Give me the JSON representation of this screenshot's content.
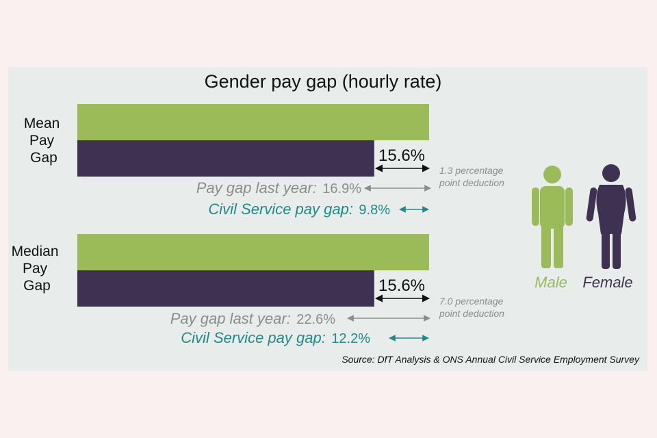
{
  "chart_data": {
    "type": "bar",
    "title": "Gender pay gap (hourly rate)",
    "series": [
      {
        "name": "Male",
        "color": "#9bbb59"
      },
      {
        "name": "Female",
        "color": "#3f3151"
      }
    ],
    "groups": [
      {
        "label": "Mean Pay Gap",
        "label_lines": [
          "Mean",
          "Pay",
          "Gap"
        ],
        "male_value": 100,
        "female_value": 84.4,
        "gap_label": "15.6%",
        "last_year_label": "Pay gap last year:",
        "last_year_value": "16.9%",
        "civil_service_label": "Civil Service pay gap:",
        "civil_service_value": "9.8%",
        "deduction_lines": [
          "1.3 percentage",
          "point deduction"
        ]
      },
      {
        "label": "Median Pay Gap",
        "label_lines": [
          "Median",
          "Pay",
          "Gap"
        ],
        "male_value": 100,
        "female_value": 84.4,
        "gap_label": "15.6%",
        "last_year_label": "Pay gap last year:",
        "last_year_value": "22.6%",
        "civil_service_label": "Civil Service pay gap:",
        "civil_service_value": "12.2%",
        "deduction_lines": [
          "7.0 percentage",
          "point deduction"
        ]
      }
    ],
    "legend": {
      "male": "Male",
      "female": "Female"
    },
    "source": "Source: DfT Analysis & ONS Annual Civil Service Employment Survey"
  },
  "colors": {
    "male": "#9bbb59",
    "female": "#3f3151",
    "grey": "#8c8c8c",
    "teal": "#1f8a8a",
    "black": "#111111"
  }
}
